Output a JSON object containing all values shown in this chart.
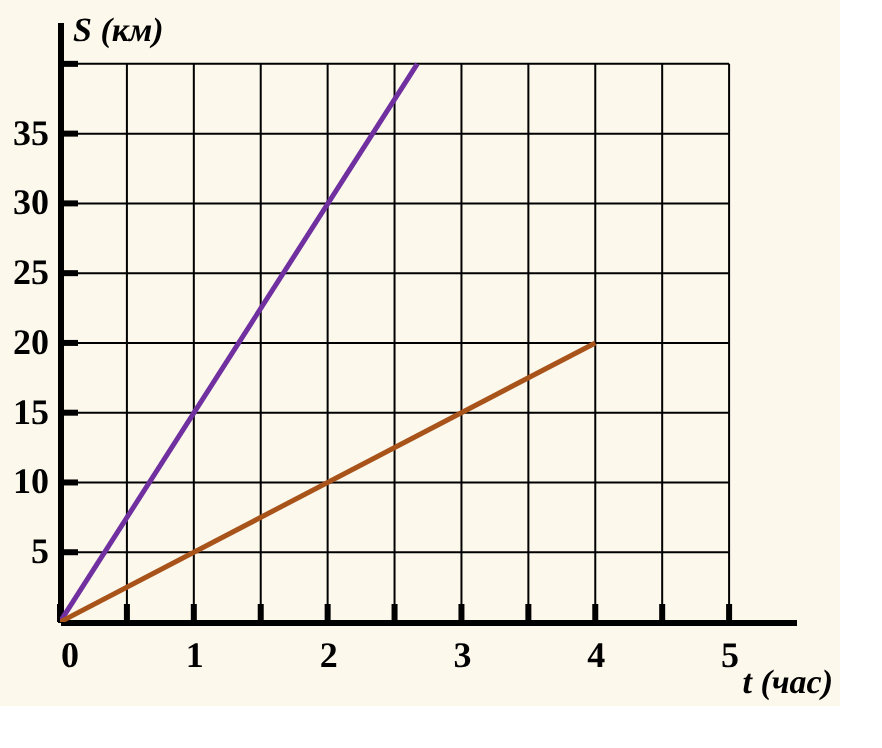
{
  "chart_data": {
    "type": "line",
    "xlabel": "t (час)",
    "ylabel": "S (км)",
    "xlim": [
      0,
      5.5
    ],
    "ylim": [
      0,
      43
    ],
    "xticks": [
      0,
      {
        "value": 0.5,
        "label": null
      },
      1,
      {
        "value": 1.5,
        "label": null
      },
      2,
      {
        "value": 2.5,
        "label": null
      },
      3,
      {
        "value": 3.5,
        "label": null
      },
      4,
      {
        "value": 4.5,
        "label": null
      },
      5
    ],
    "yticks": [
      5,
      10,
      15,
      20,
      25,
      30,
      35,
      {
        "value": 40,
        "label": null
      }
    ],
    "grid": true,
    "legend": false,
    "marker": "none",
    "line_style": "solid",
    "series": [
      {
        "color": "#7030a0",
        "x": [
          0,
          2.67
        ],
        "values": [
          0,
          40
        ]
      },
      {
        "color": "#a8531a",
        "x": [
          0,
          4
        ],
        "values": [
          0,
          20
        ]
      }
    ]
  }
}
